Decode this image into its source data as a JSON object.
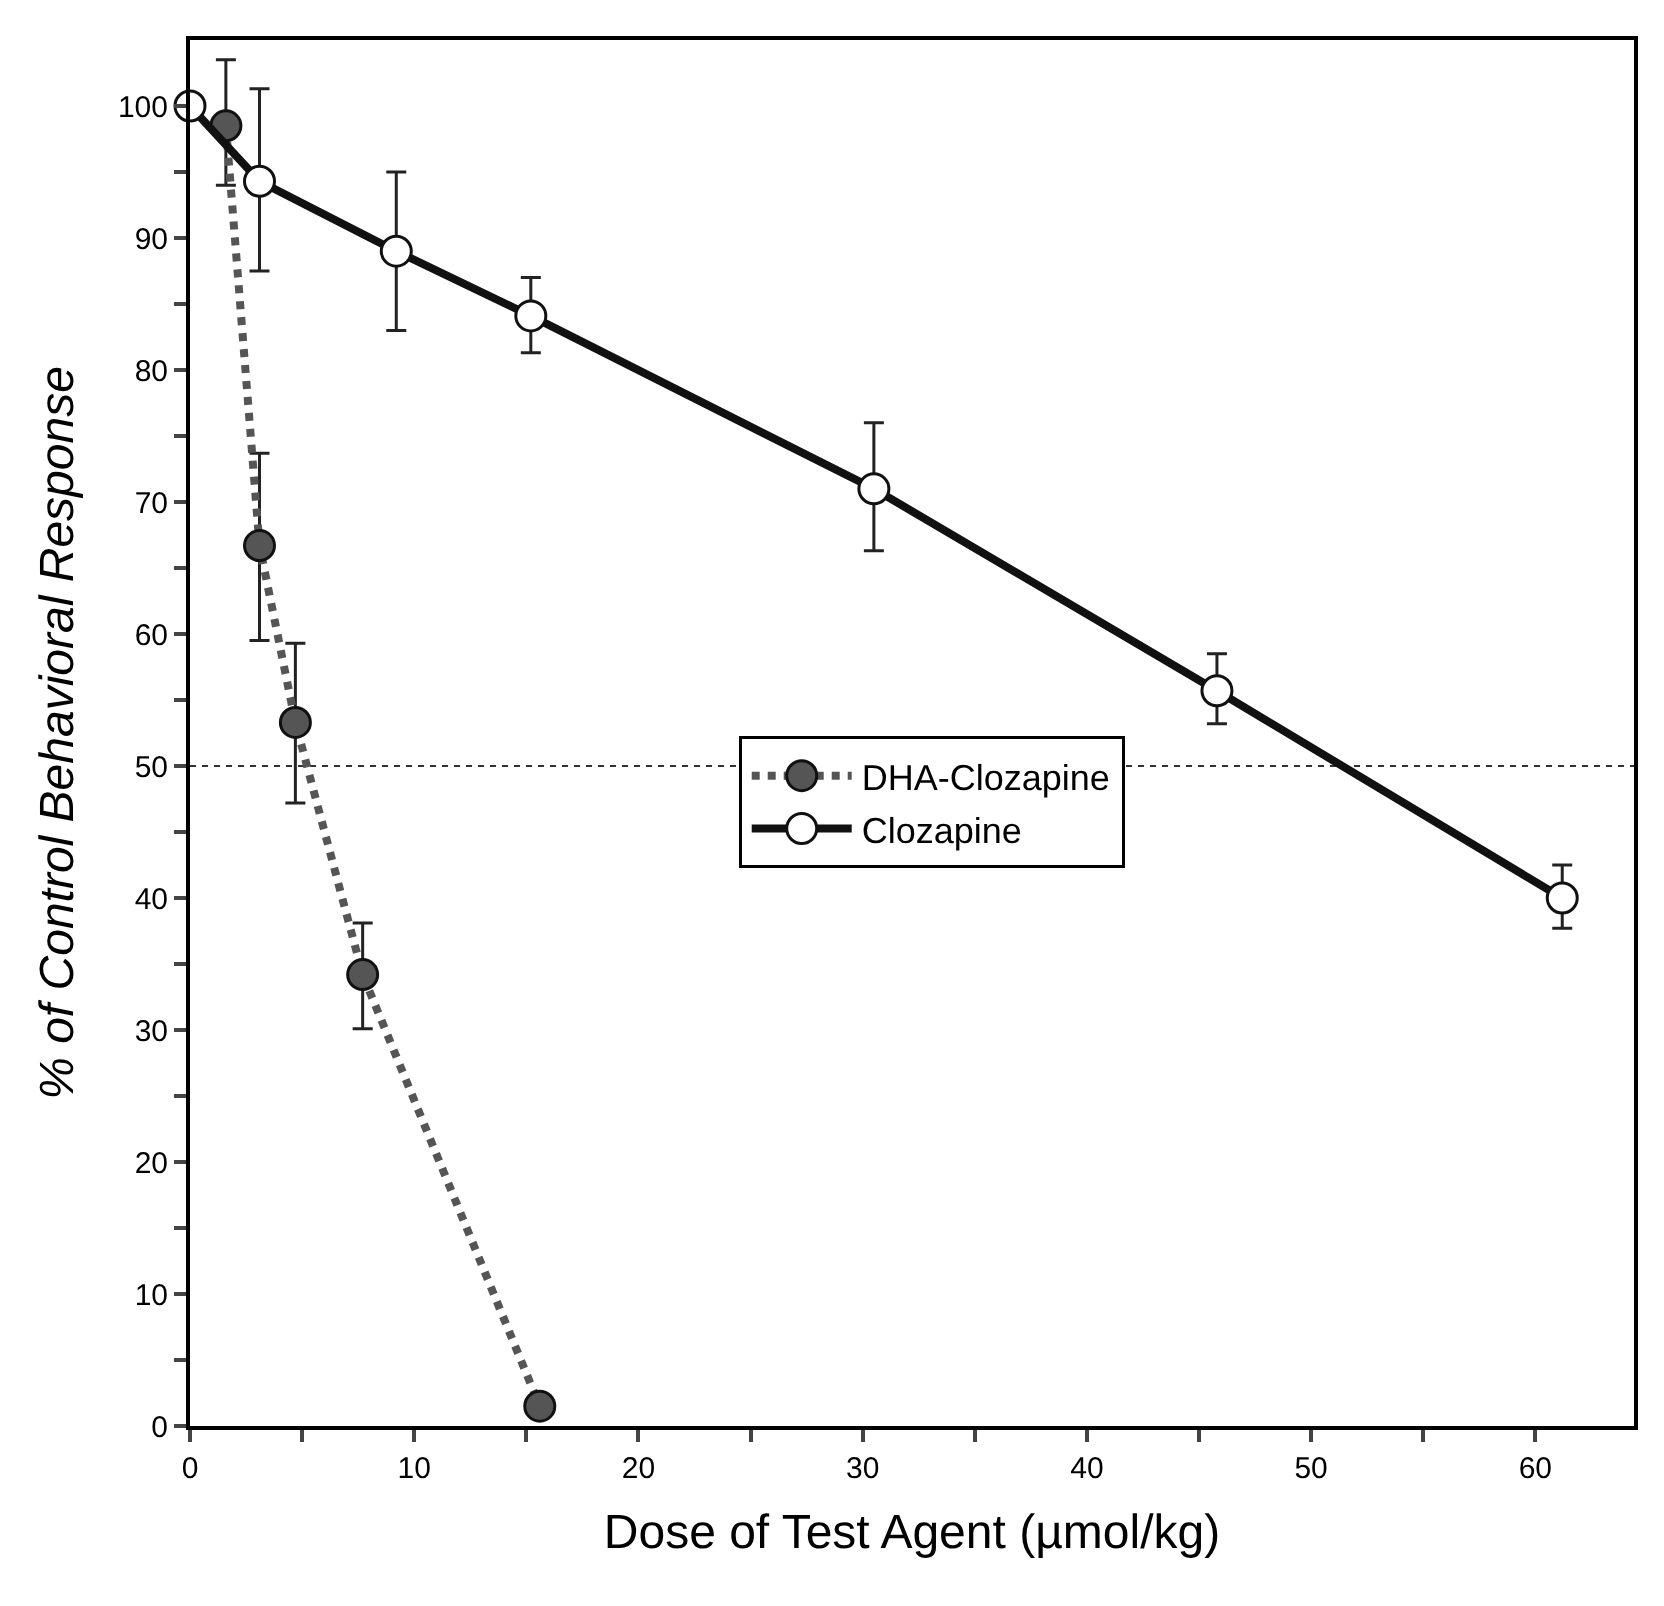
{
  "chart_data": {
    "type": "line",
    "xlabel": "Dose of Test Agent (µmol/kg)",
    "ylabel": "% of Control Behavioral Response",
    "xlim": [
      0,
      64.4
    ],
    "ylim": [
      0,
      105
    ],
    "xticks": [
      0,
      {
        "value": 5,
        "label": null
      },
      10,
      {
        "value": 15,
        "label": null
      },
      20,
      {
        "value": 25,
        "label": null
      },
      30,
      {
        "value": 35,
        "label": null
      },
      40,
      {
        "value": 45,
        "label": null
      },
      50,
      {
        "value": 55,
        "label": null
      },
      60
    ],
    "yticks": [
      0,
      {
        "value": 5,
        "label": null
      },
      10,
      {
        "value": 15,
        "label": null
      },
      20,
      {
        "value": 25,
        "label": null
      },
      30,
      {
        "value": 35,
        "label": null
      },
      40,
      {
        "value": 45,
        "label": null
      },
      50,
      {
        "value": 55,
        "label": null
      },
      60,
      {
        "value": 65,
        "label": null
      },
      70,
      {
        "value": 75,
        "label": null
      },
      80,
      {
        "value": 85,
        "label": null
      },
      90,
      {
        "value": 95,
        "label": null
      },
      100
    ],
    "series": [
      {
        "name": "DHA-Clozapine",
        "color": "#555555",
        "line_style": "dotted",
        "marker": "circle",
        "x": [
          1.6,
          3.1,
          4.7,
          7.7,
          15.6
        ],
        "values": [
          98.5,
          66.7,
          53.3,
          34.2,
          1.5
        ],
        "errors": [
          [
            94,
            103.5
          ],
          [
            59.5,
            73.7
          ],
          [
            47.2,
            59.3
          ],
          [
            30.1,
            38.1
          ],
          null
        ]
      },
      {
        "name": "Clozapine",
        "color": "#111111",
        "line_style": "solid",
        "marker": "circle",
        "x": [
          0,
          3.1,
          9.2,
          15.2,
          30.5,
          45.8,
          61.2
        ],
        "values": [
          100,
          94.3,
          89,
          84.1,
          71,
          55.7,
          40
        ],
        "errors": [
          null,
          [
            87.5,
            101.3
          ],
          [
            83,
            95
          ],
          [
            81.3,
            87
          ],
          [
            66.3,
            76
          ],
          [
            53.2,
            58.5
          ],
          [
            37.7,
            42.5
          ]
        ]
      }
    ],
    "ref_lines": [
      {
        "axis": "y",
        "value": 50,
        "line_style": "dotted",
        "color": "#333333"
      }
    ],
    "legend": "right",
    "grid": false
  }
}
